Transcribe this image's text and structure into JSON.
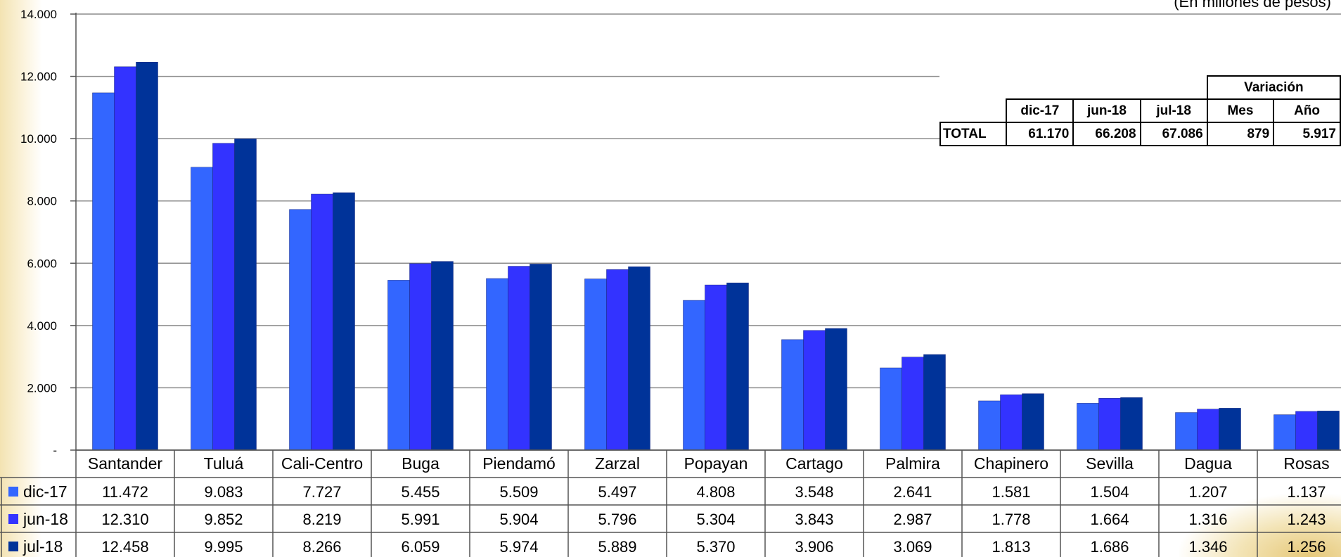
{
  "unit_note": "(En millones de pesos)",
  "chart_data": {
    "type": "bar",
    "categories": [
      "Santander",
      "Tuluá",
      "Cali-Centro",
      "Buga",
      "Piendamó",
      "Zarzal",
      "Popayan",
      "Cartago",
      "Palmira",
      "Chapinero",
      "Sevilla",
      "Dagua",
      "Rosas"
    ],
    "series": [
      {
        "name": "dic-17",
        "color": "#3366ff",
        "values": [
          11472,
          9083,
          7727,
          5455,
          5509,
          5497,
          4808,
          3548,
          2641,
          1581,
          1504,
          1207,
          1137
        ],
        "labels": [
          "11.472",
          "9.083",
          "7.727",
          "5.455",
          "5.509",
          "5.497",
          "4.808",
          "3.548",
          "2.641",
          "1.581",
          "1.504",
          "1.207",
          "1.137"
        ]
      },
      {
        "name": "jun-18",
        "color": "#3333ff",
        "values": [
          12310,
          9852,
          8219,
          5991,
          5904,
          5796,
          5304,
          3843,
          2987,
          1778,
          1664,
          1316,
          1243
        ],
        "labels": [
          "12.310",
          "9.852",
          "8.219",
          "5.991",
          "5.904",
          "5.796",
          "5.304",
          "3.843",
          "2.987",
          "1.778",
          "1.664",
          "1.316",
          "1.243"
        ]
      },
      {
        "name": "jul-18",
        "color": "#003399",
        "values": [
          12458,
          9995,
          8266,
          6059,
          5974,
          5889,
          5370,
          3906,
          3069,
          1813,
          1686,
          1346,
          1256
        ],
        "labels": [
          "12.458",
          "9.995",
          "8.266",
          "6.059",
          "5.974",
          "5.889",
          "5.370",
          "3.906",
          "3.069",
          "1.813",
          "1.686",
          "1.346",
          "1.256"
        ]
      }
    ],
    "yticks": [
      0,
      2000,
      4000,
      6000,
      8000,
      10000,
      12000,
      14000
    ],
    "ytick_labels": [
      "-",
      "2.000",
      "4.000",
      "6.000",
      "8.000",
      "10.000",
      "12.000",
      "14.000"
    ],
    "ylim": [
      0,
      14000
    ],
    "grid": true,
    "legend": "data-table-left"
  },
  "totals_table": {
    "variation_header": "Variación",
    "headers": [
      "dic-17",
      "jun-18",
      "jul-18",
      "Mes",
      "Año"
    ],
    "row_label": "TOTAL",
    "values": [
      "61.170",
      "66.208",
      "67.086",
      "879",
      "5.917"
    ]
  }
}
